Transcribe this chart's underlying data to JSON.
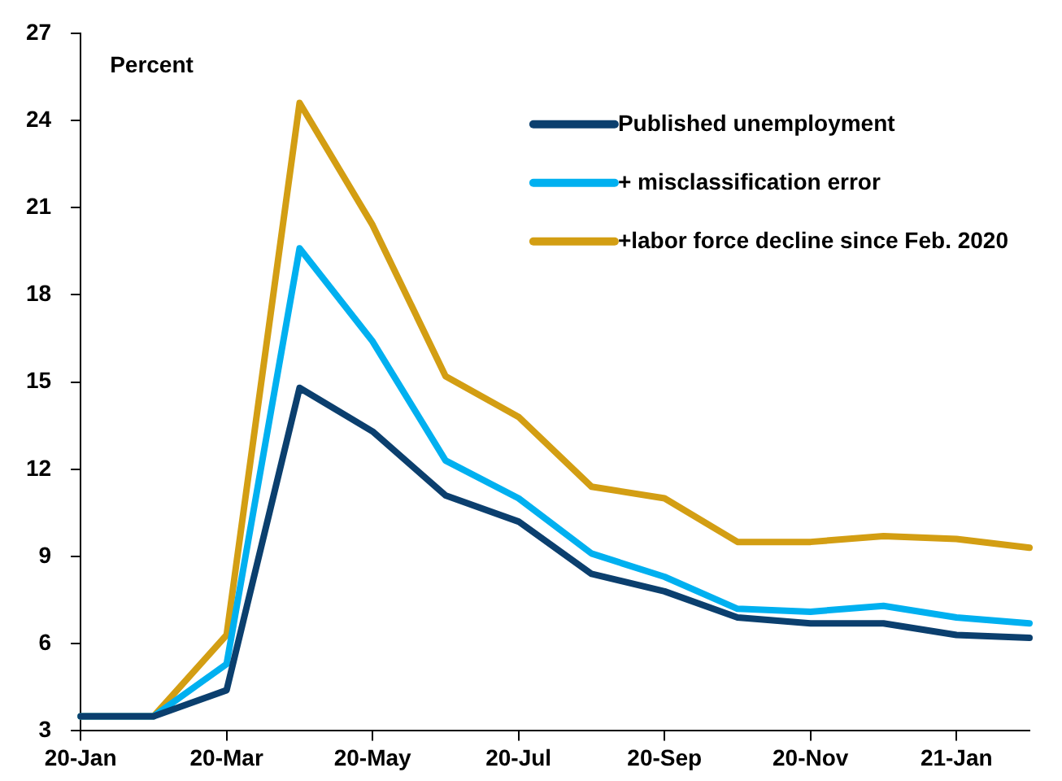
{
  "chart_data": {
    "type": "line",
    "ylabel": "Percent",
    "categories": [
      "20-Jan",
      null,
      "20-Mar",
      null,
      "20-May",
      null,
      "20-Jul",
      null,
      "20-Sep",
      null,
      "20-Nov",
      null,
      "21-Jan",
      null
    ],
    "series": [
      {
        "name": "Published unemployment",
        "color": "#0b3f6e",
        "values": [
          3.5,
          3.5,
          4.4,
          14.8,
          13.3,
          11.1,
          10.2,
          8.4,
          7.8,
          6.9,
          6.7,
          6.7,
          6.3,
          6.2
        ]
      },
      {
        "name": "+ misclassification error",
        "color": "#00b0f0",
        "values": [
          3.5,
          3.5,
          5.3,
          19.6,
          16.4,
          12.3,
          11.0,
          9.1,
          8.3,
          7.2,
          7.1,
          7.3,
          6.9,
          6.7
        ]
      },
      {
        "name": "+labor force decline since Feb. 2020",
        "color": "#d39e13",
        "values": [
          3.5,
          3.5,
          6.3,
          24.6,
          20.4,
          15.2,
          13.8,
          11.4,
          11.0,
          9.5,
          9.5,
          9.7,
          9.6,
          9.3
        ]
      }
    ],
    "ylim": [
      3,
      27
    ],
    "yticks": [
      3,
      6,
      9,
      12,
      15,
      18,
      21,
      24,
      27
    ],
    "grid": false,
    "legend": "top right",
    "marker": "none",
    "line_style": "solid"
  }
}
